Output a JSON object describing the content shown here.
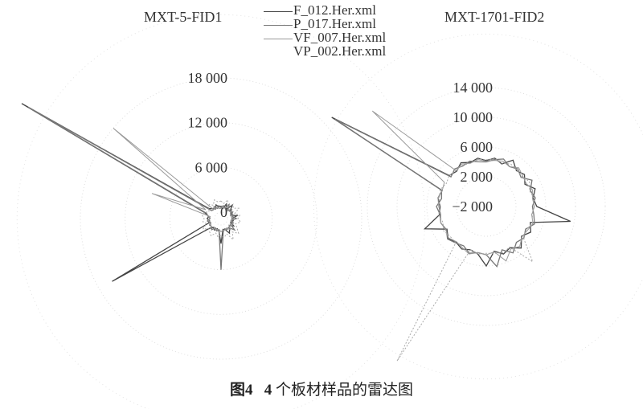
{
  "figure": {
    "caption_label": "图4",
    "caption_number": "4",
    "caption_text": " 个板材样品的雷达图"
  },
  "legend": [
    {
      "name": "F_012.Her.xml",
      "color": "#444444",
      "dash": "solid"
    },
    {
      "name": "P_017.Her.xml",
      "color": "#777777",
      "dash": "solid"
    },
    {
      "name": "VF_007.Her.xml",
      "color": "#999999",
      "dash": "solid"
    },
    {
      "name": "VP_002.Her.xml",
      "color": "#aaaaaa",
      "dash": "dotted"
    }
  ],
  "chart_data": [
    {
      "type": "radar",
      "title": "MXT-5-FID1",
      "ticks": [
        "0",
        "6 000",
        "12 000",
        "18 000"
      ],
      "tick_values": [
        0,
        6000,
        12000,
        18000
      ],
      "rlim": [
        0,
        18000
      ],
      "grid": "dotted",
      "legend_placement": "top-center",
      "series": [
        {
          "name": "F_012.Her.xml",
          "values": [
            800,
            500,
            1200,
            600,
            1500,
            700,
            900,
            500,
            1300,
            600,
            800,
            500,
            1100,
            600,
            900,
            1400,
            700,
            600,
            2500,
            800,
            600,
            900,
            700,
            1200,
            16000,
            900,
            700,
            1000,
            800,
            1500,
            30000,
            1200,
            900,
            600,
            1100,
            700
          ]
        },
        {
          "name": "P_017.Her.xml",
          "values": [
            600,
            900,
            700,
            1300,
            500,
            1000,
            600,
            800,
            700,
            1200,
            500,
            900,
            600,
            1500,
            700,
            800,
            600,
            900,
            6000,
            700,
            900,
            600,
            1100,
            800,
            900,
            700,
            1000,
            600,
            900,
            1200,
            29000,
            800,
            700,
            1000,
            600,
            900
          ]
        },
        {
          "name": "VF_007.Her.xml",
          "values": [
            500,
            700,
            600,
            900,
            800,
            600,
            1000,
            700,
            500,
            800,
            600,
            700,
            900,
            500,
            1100,
            600,
            800,
            700,
            900,
            600,
            700,
            800,
            600,
            900,
            700,
            600,
            800,
            700,
            600,
            9000,
            1500,
            18000,
            800,
            600,
            700,
            500
          ]
        },
        {
          "name": "VP_002.Her.xml",
          "values": [
            1500,
            1200,
            1800,
            1000,
            1600,
            1300,
            1900,
            1100,
            1700,
            1400,
            1800,
            1200,
            1600,
            2200,
            1500,
            2400,
            1300,
            1700,
            1400,
            1600,
            1200,
            1800,
            1500,
            1300,
            1900,
            1200,
            1600,
            1400,
            1700,
            1500,
            1000,
            1300,
            1600,
            1200,
            1800,
            1400
          ]
        }
      ]
    },
    {
      "type": "radar",
      "title": "MXT-1701-FID2",
      "ticks": [
        "−2 000",
        "2 000",
        "6 000",
        "10 000",
        "14 000"
      ],
      "tick_values": [
        -2000,
        2000,
        6000,
        10000,
        14000
      ],
      "rlim": [
        -2000,
        14000
      ],
      "grid": "dotted",
      "legend_placement": "top-center",
      "series": [
        {
          "name": "F_012.Her.xml",
          "values": [
            4200,
            4600,
            4100,
            5200,
            4300,
            4700,
            4000,
            5000,
            4400,
            4800,
            9500,
            4300,
            4900,
            4200,
            5300,
            4400,
            4800,
            4100,
            6000,
            4500,
            4200,
            4600,
            4300,
            4700,
            4100,
            6800,
            4400,
            4200,
            4600,
            4300,
            22000,
            4500,
            4200,
            4800,
            4300,
            4600
          ]
        },
        {
          "name": "P_017.Her.xml",
          "values": [
            4000,
            4400,
            4800,
            4200,
            4600,
            4100,
            5100,
            4300,
            4700,
            4200,
            4500,
            4900,
            4100,
            4600,
            4300,
            5200,
            4200,
            6200,
            4500,
            4300,
            4700,
            4100,
            4400,
            4800,
            4200,
            4500,
            4300,
            4700,
            4100,
            4400,
            21500,
            4200,
            4600,
            4300,
            4500,
            4100
          ]
        },
        {
          "name": "VF_007.Her.xml",
          "values": [
            4100,
            4300,
            4500,
            4200,
            4800,
            4400,
            4200,
            4600,
            4300,
            4500,
            4200,
            4700,
            4400,
            4300,
            5000,
            4600,
            5800,
            4200,
            4500,
            4300,
            4800,
            4400,
            4200,
            4600,
            4300,
            4500,
            4200,
            4400,
            4600,
            4300,
            4500,
            18000,
            4300,
            4600,
            4200,
            4400
          ]
        },
        {
          "name": "VP_002.Her.xml",
          "values": [
            4300,
            4500,
            4200,
            4600,
            4400,
            4300,
            4700,
            4200,
            4500,
            4400,
            4300,
            4600,
            4200,
            4500,
            7700,
            4300,
            4600,
            4400,
            4300,
            4500,
            4200,
            22000,
            4400,
            4300,
            4600,
            4200,
            4500,
            4300,
            4400,
            4600,
            4200,
            4500,
            4300,
            4400,
            4200,
            4500
          ]
        }
      ]
    }
  ]
}
